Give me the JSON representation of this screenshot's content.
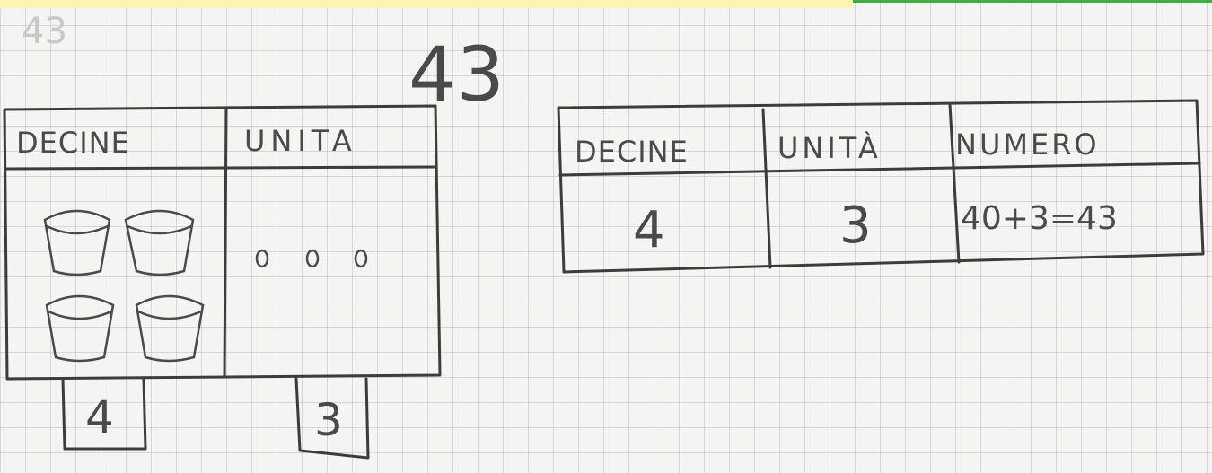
{
  "faint_number": "43",
  "title": "43",
  "left_table": {
    "headers": [
      "DECINE",
      "UNITA"
    ],
    "totals": [
      "4",
      "3"
    ]
  },
  "right_table": {
    "headers": [
      "DECINE",
      "UNITÀ",
      "NUMERO"
    ],
    "row": [
      "4",
      "3",
      "40+3=43"
    ]
  }
}
